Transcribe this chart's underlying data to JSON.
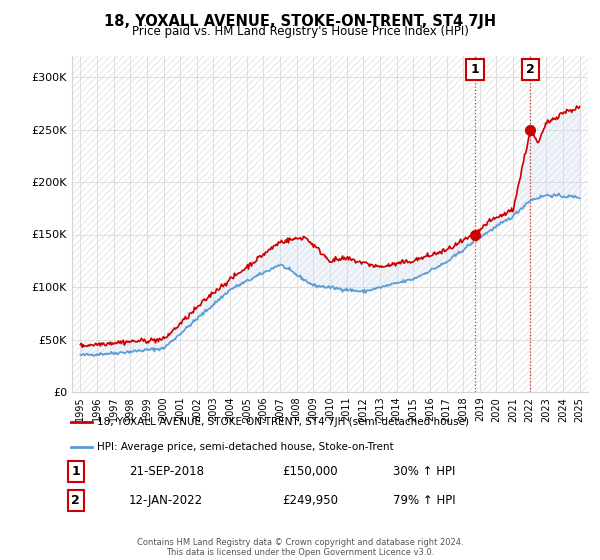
{
  "title": "18, YOXALL AVENUE, STOKE-ON-TRENT, ST4 7JH",
  "subtitle": "Price paid vs. HM Land Registry's House Price Index (HPI)",
  "legend_line1": "18, YOXALL AVENUE, STOKE-ON-TRENT, ST4 7JH (semi-detached house)",
  "legend_line2": "HPI: Average price, semi-detached house, Stoke-on-Trent",
  "annotation1_label": "1",
  "annotation1_date": "21-SEP-2018",
  "annotation1_price": "£150,000",
  "annotation1_hpi": "30% ↑ HPI",
  "annotation2_label": "2",
  "annotation2_date": "12-JAN-2022",
  "annotation2_price": "£249,950",
  "annotation2_hpi": "79% ↑ HPI",
  "footer": "Contains HM Land Registry data © Crown copyright and database right 2024.\nThis data is licensed under the Open Government Licence v3.0.",
  "red_color": "#cc0000",
  "blue_color": "#5b9bd5",
  "fill_color": "#c5d9f1",
  "marker1_x": 2018.72,
  "marker1_y": 150000,
  "marker2_x": 2022.04,
  "marker2_y": 249950,
  "ylim": [
    0,
    320000
  ],
  "xlim_start": 1994.5,
  "xlim_end": 2025.5
}
